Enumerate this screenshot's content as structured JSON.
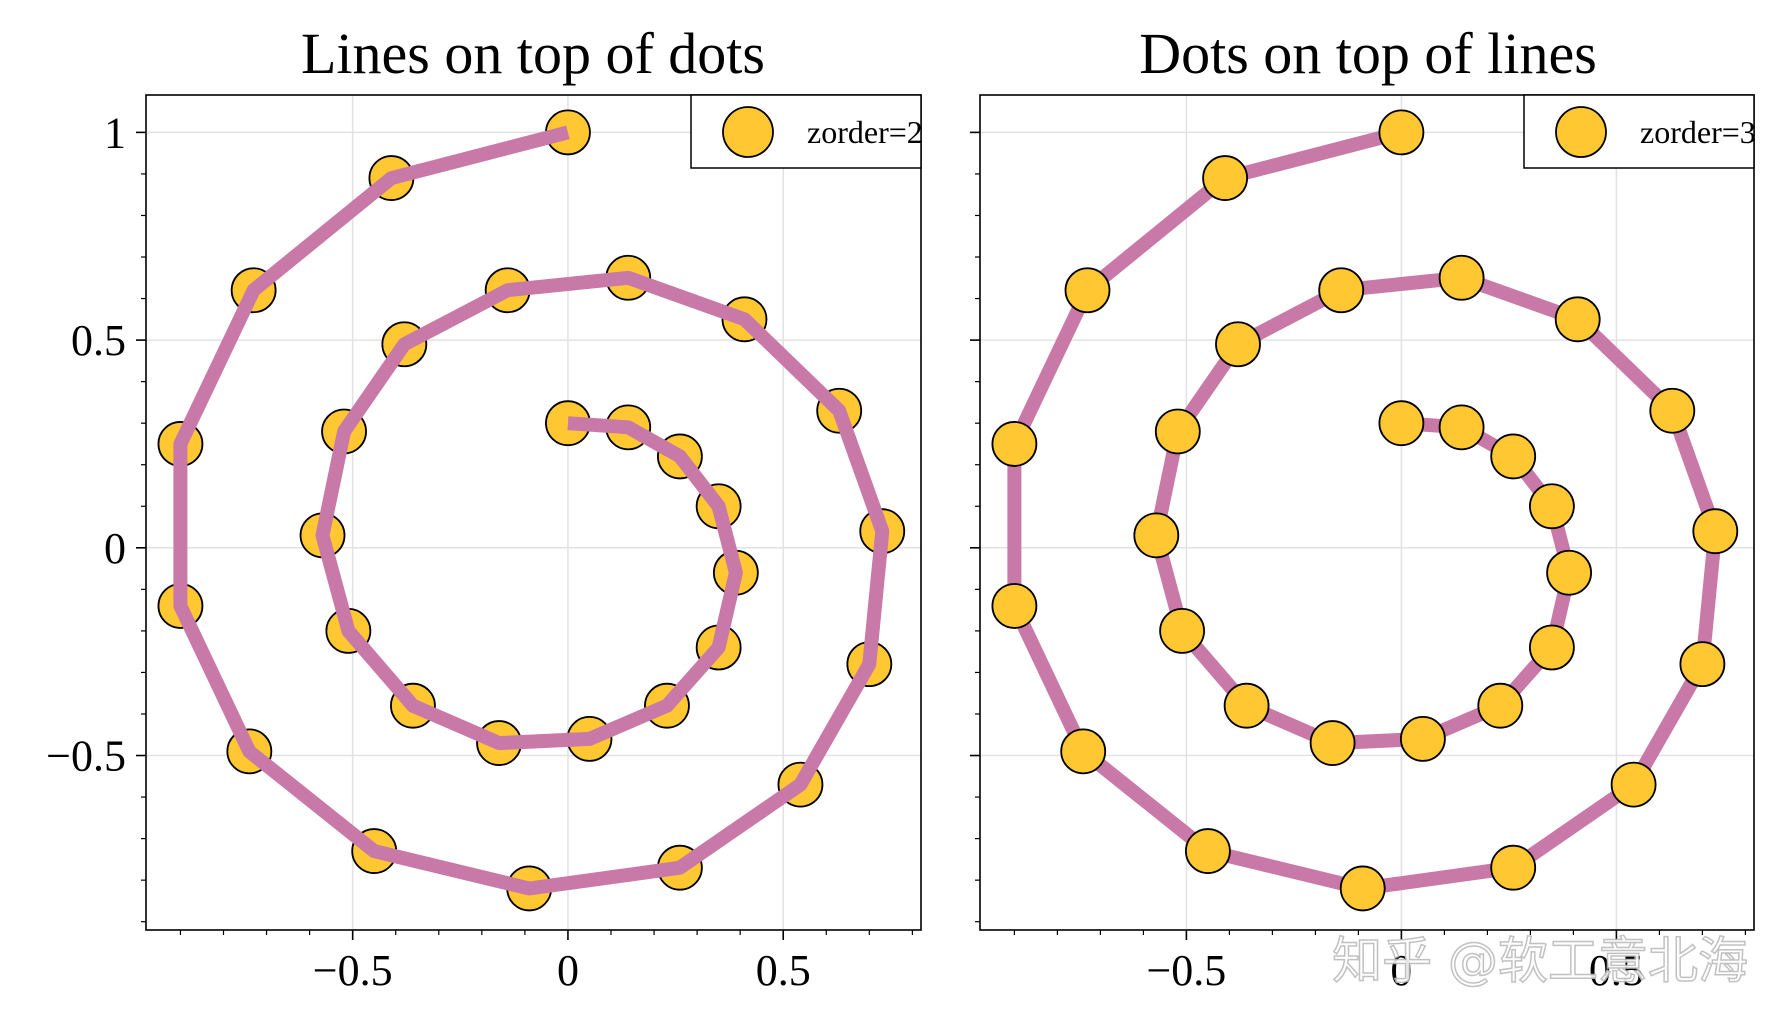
{
  "watermark": "知乎 @软工意北海",
  "colors": {
    "line": "#C979A7",
    "marker_fill": "#FFC832",
    "marker_edge": "#000000",
    "grid": "#E2E2E2"
  },
  "chart_data": [
    {
      "type": "line",
      "title": "Lines on top of dots",
      "xlabel": "",
      "ylabel": "",
      "xlim": [
        -0.98,
        0.82
      ],
      "ylim": [
        -0.92,
        1.09
      ],
      "xticks": [
        -0.5,
        0,
        0.5
      ],
      "xtick_labels": [
        "−0.5",
        "0",
        "0.5"
      ],
      "yticks": [
        -0.5,
        0,
        0.5,
        1
      ],
      "ytick_labels": [
        "−0.5",
        "0",
        "0.5",
        "1"
      ],
      "grid": true,
      "legend_position": "top-right",
      "series": [
        {
          "name": "zorder=2",
          "marker_style": "circle",
          "line_on_top": true,
          "x": [
            0.0,
            0.14,
            0.26,
            0.35,
            0.39,
            0.35,
            0.23,
            0.05,
            -0.16,
            -0.36,
            -0.51,
            -0.57,
            -0.52,
            -0.38,
            -0.14,
            0.14,
            0.41,
            0.63,
            0.73,
            0.7,
            0.54,
            0.26,
            -0.09,
            -0.45,
            -0.74,
            -0.9,
            -0.9,
            -0.73,
            -0.41,
            0.0
          ],
          "y": [
            0.3,
            0.29,
            0.22,
            0.1,
            -0.06,
            -0.24,
            -0.38,
            -0.46,
            -0.47,
            -0.38,
            -0.2,
            0.03,
            0.28,
            0.49,
            0.62,
            0.65,
            0.55,
            0.33,
            0.04,
            -0.28,
            -0.57,
            -0.77,
            -0.82,
            -0.73,
            -0.49,
            -0.14,
            0.25,
            0.62,
            0.89,
            1.0
          ]
        }
      ]
    },
    {
      "type": "line",
      "title": "Dots on top of lines",
      "xlabel": "",
      "ylabel": "",
      "xlim": [
        -0.98,
        0.82
      ],
      "ylim": [
        -0.92,
        1.09
      ],
      "xticks": [
        -0.5,
        0,
        0.5
      ],
      "xtick_labels": [
        "−0.5",
        "0",
        "0.5"
      ],
      "yticks": [
        -0.5,
        0,
        0.5,
        1
      ],
      "ytick_labels": [],
      "grid": true,
      "legend_position": "top-right",
      "series": [
        {
          "name": "zorder=3",
          "marker_style": "circle",
          "line_on_top": false,
          "x": [
            0.0,
            0.14,
            0.26,
            0.35,
            0.39,
            0.35,
            0.23,
            0.05,
            -0.16,
            -0.36,
            -0.51,
            -0.57,
            -0.52,
            -0.38,
            -0.14,
            0.14,
            0.41,
            0.63,
            0.73,
            0.7,
            0.54,
            0.26,
            -0.09,
            -0.45,
            -0.74,
            -0.9,
            -0.9,
            -0.73,
            -0.41,
            0.0
          ],
          "y": [
            0.3,
            0.29,
            0.22,
            0.1,
            -0.06,
            -0.24,
            -0.38,
            -0.46,
            -0.47,
            -0.38,
            -0.2,
            0.03,
            0.28,
            0.49,
            0.62,
            0.65,
            0.55,
            0.33,
            0.04,
            -0.28,
            -0.57,
            -0.77,
            -0.82,
            -0.73,
            -0.49,
            -0.14,
            0.25,
            0.62,
            0.89,
            1.0
          ]
        }
      ]
    }
  ]
}
